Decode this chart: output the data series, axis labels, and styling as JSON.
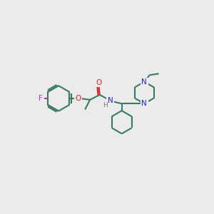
{
  "bg_color": "#ebebeb",
  "bond_color": "#3a7a60",
  "N_color": "#2222dd",
  "O_color": "#dd2222",
  "F_color": "#cc22cc",
  "H_color": "#777777",
  "lw": 1.5,
  "figsize": [
    3.0,
    3.0
  ],
  "dpi": 100,
  "xlim": [
    0,
    10
  ],
  "ylim": [
    0,
    10
  ]
}
